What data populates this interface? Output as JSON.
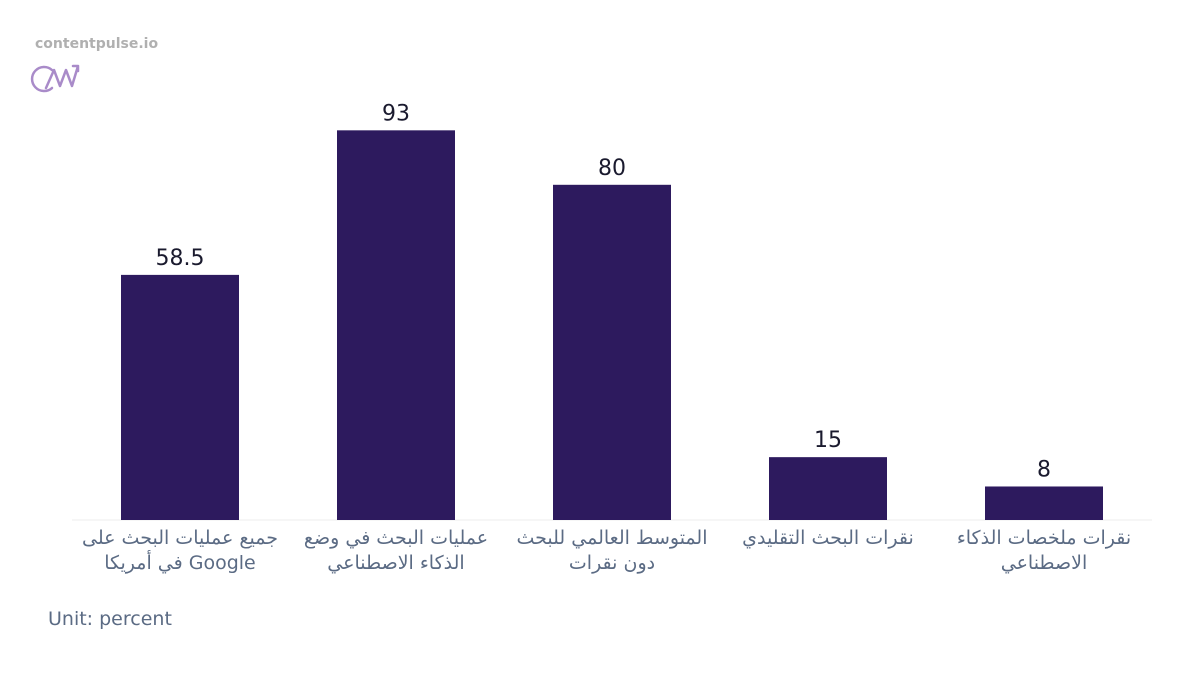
{
  "brand": "contentpulse.io",
  "chart_data": {
    "type": "bar",
    "categories": [
      "جميع عمليات البحث على Google في أمريكا",
      "عمليات البحث في وضع الذكاء الاصطناعي",
      "المتوسط العالمي للبحث دون نقرات",
      "نقرات البحث التقليدي",
      "نقرات ملخصات الذكاء الاصطناعي"
    ],
    "values": [
      58.5,
      93,
      80,
      15,
      8
    ],
    "color": "#2d1a5e",
    "ylim": [
      0,
      100
    ],
    "unit_note": "Unit: percent"
  }
}
